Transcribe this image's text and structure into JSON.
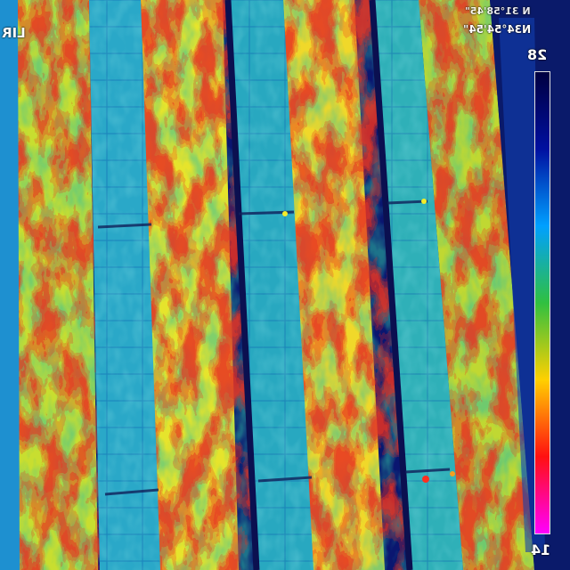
{
  "image": {
    "kind": "aerial thermal infrared view of solar panel rows",
    "palette": [
      "#0a0a40",
      "#1030c0",
      "#1a9bd8",
      "#2fc0a0",
      "#a8d832",
      "#f3ec2a",
      "#f5a020",
      "#e83020"
    ]
  },
  "overlay": {
    "top_left_label": "LIR",
    "coord_line_1": "N 31°58'45\"",
    "coord_line_2": "N34°54'54\"",
    "scale_max": "28",
    "scale_min": "14"
  },
  "colorbar": {
    "stops": [
      "#ff00ff",
      "#ff1010",
      "#ffd000",
      "#30c040",
      "#00a0ff",
      "#0010a0",
      "#000040"
    ]
  }
}
